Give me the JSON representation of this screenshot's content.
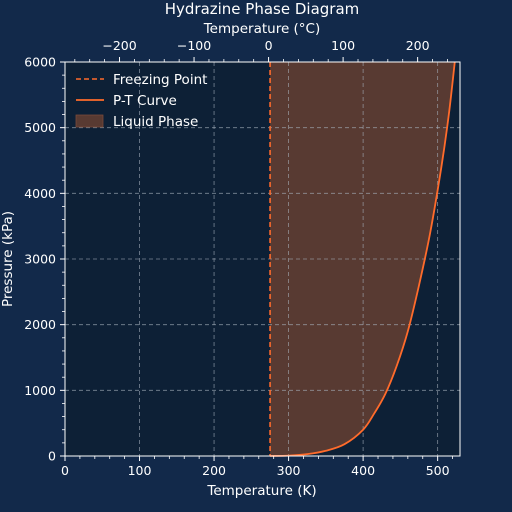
{
  "chart_data": {
    "type": "line",
    "title": "Hydrazine Phase Diagram",
    "xlabel": "Temperature (K)",
    "ylabel": "Pressure (kPa)",
    "secondary_xlabel": "Temperature (°C)",
    "xlim": [
      0,
      530
    ],
    "ylim": [
      0,
      6000
    ],
    "x_ticks": [
      0,
      100,
      200,
      300,
      400,
      500
    ],
    "y_ticks": [
      0,
      1000,
      2000,
      3000,
      4000,
      5000,
      6000
    ],
    "secondary_x_ticks": [
      {
        "value": -200,
        "label": "−200"
      },
      {
        "value": -100,
        "label": "−100"
      },
      {
        "value": 0,
        "label": "0"
      },
      {
        "value": 100,
        "label": "100"
      },
      {
        "value": 200,
        "label": "200"
      }
    ],
    "grid": true,
    "legend_position": "top-left",
    "colors": {
      "figure_background": "#12294a",
      "plot_background": "#0d2036",
      "accent": "#ff6b2b",
      "liquid_fill": "#583a32",
      "grid": "#a9b3bf",
      "text": "#ffffff"
    },
    "freezing_point": {
      "name": "Freezing Point",
      "x": 275.15
    },
    "series": [
      {
        "name": "P-T Curve",
        "x": [
          275,
          300,
          325,
          350,
          375,
          400,
          415,
          430,
          445,
          460,
          475,
          490,
          505,
          515,
          523
        ],
        "y": [
          0,
          6,
          28,
          80,
          180,
          400,
          650,
          950,
          1370,
          1900,
          2600,
          3400,
          4400,
          5200,
          6000
        ]
      }
    ],
    "liquid_phase": {
      "name": "Liquid Phase"
    },
    "legend": [
      "Freezing Point",
      "P-T Curve",
      "Liquid Phase"
    ]
  }
}
